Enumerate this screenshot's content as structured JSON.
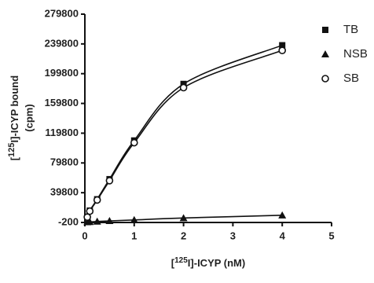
{
  "chart_data": {
    "type": "scatter",
    "xlabel": [
      "[",
      "125",
      "I]-ICYP (nM)"
    ],
    "ylabel": [
      "[",
      "125",
      "I]-ICYP bound",
      "(cpm)"
    ],
    "xlim": [
      0,
      5
    ],
    "xticks": [
      0,
      1,
      2,
      3,
      4,
      5
    ],
    "ylim": [
      -200,
      279800
    ],
    "yticks": [
      -200,
      39800,
      79800,
      119800,
      159800,
      199800,
      239800,
      279800
    ],
    "series": [
      {
        "name": "TB",
        "marker": "square",
        "color": "#111111",
        "x": [
          0.05,
          0.1,
          0.25,
          0.5,
          1,
          2,
          4
        ],
        "values": [
          7500,
          15800,
          31000,
          58000,
          110000,
          186000,
          238000
        ]
      },
      {
        "name": "NSB",
        "marker": "triangle",
        "color": "#111111",
        "x": [
          0.05,
          0.1,
          0.25,
          0.5,
          1,
          2,
          4
        ],
        "values": [
          300,
          600,
          1100,
          1900,
          3200,
          5800,
          9500
        ]
      },
      {
        "name": "SB",
        "marker": "circle",
        "color": "#111111",
        "x": [
          0.05,
          0.1,
          0.25,
          0.5,
          1,
          2,
          4
        ],
        "values": [
          7000,
          15000,
          30000,
          56000,
          107000,
          181000,
          231000
        ]
      }
    ]
  }
}
